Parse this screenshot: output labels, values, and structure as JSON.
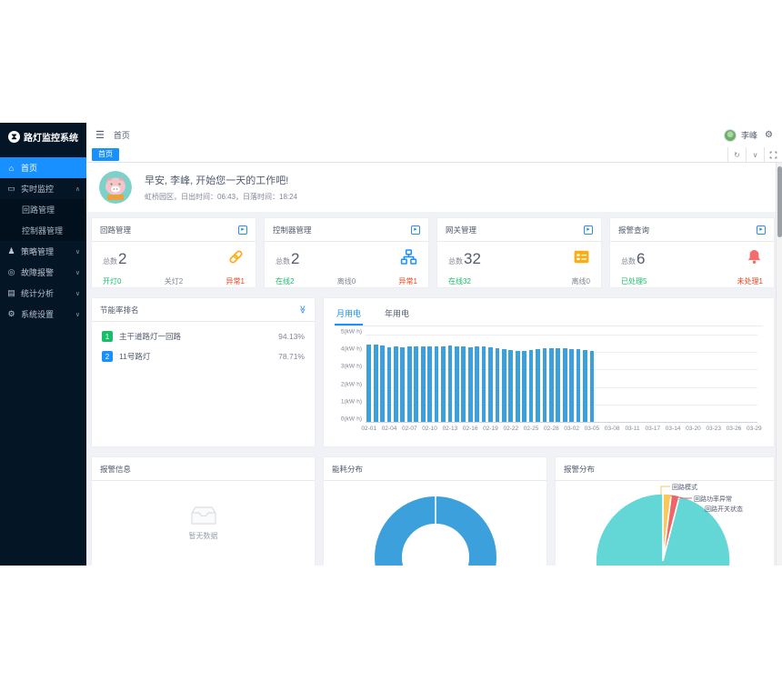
{
  "app_title": "路灯监控系统",
  "theme": {
    "accent": "#1890ff",
    "sidebar_bg": "#041526",
    "green": "#19be6b",
    "red": "#ed3f14",
    "gray": "#808695",
    "bar_blue": "#3ca0dc",
    "pie_teal": "#63d6d6",
    "orange": "#faad14",
    "bell_red": "#f56c6c"
  },
  "sidebar": {
    "items": [
      {
        "label": "首页",
        "icon": "home-icon",
        "active": true
      },
      {
        "label": "实时监控",
        "icon": "monitor-icon",
        "caret": "∧",
        "children": [
          {
            "label": "回路管理"
          },
          {
            "label": "控制器管理"
          }
        ]
      },
      {
        "label": "策略管理",
        "icon": "strategy-icon",
        "caret": "∨"
      },
      {
        "label": "故障报警",
        "icon": "fault-icon",
        "caret": "∨"
      },
      {
        "label": "统计分析",
        "icon": "stats-icon",
        "caret": "∨"
      },
      {
        "label": "系统设置",
        "icon": "settings-icon",
        "caret": "∨"
      }
    ]
  },
  "header": {
    "breadcrumb": "首页",
    "user_name": "李峰"
  },
  "tabbar": {
    "active_tab": "首页"
  },
  "greeting": {
    "title": "早安, 李峰, 开始您一天的工作吧!",
    "subtitle": "虹桥园区，日出时间：06:43，日落时间：18:24"
  },
  "stat_cards": [
    {
      "title": "回路管理",
      "total_label": "总数",
      "total": "2",
      "icon": "link-icon",
      "stats": [
        {
          "text": "开灯0",
          "tone": "green"
        },
        {
          "text": "关灯2",
          "tone": "gray"
        },
        {
          "text": "异常1",
          "tone": "red"
        }
      ]
    },
    {
      "title": "控制器管理",
      "total_label": "总数",
      "total": "2",
      "icon": "controller-icon",
      "stats": [
        {
          "text": "在线2",
          "tone": "green"
        },
        {
          "text": "离线0",
          "tone": "gray"
        },
        {
          "text": "异常1",
          "tone": "red"
        }
      ]
    },
    {
      "title": "网关管理",
      "total_label": "总数",
      "total": "32",
      "icon": "gateway-icon",
      "stats": [
        {
          "text": "在线32",
          "tone": "green"
        },
        {
          "text": "离线0",
          "tone": "gray"
        }
      ]
    },
    {
      "title": "报警查询",
      "total_label": "总数",
      "total": "6",
      "icon": "bell-icon",
      "stats": [
        {
          "text": "已处理5",
          "tone": "green"
        },
        {
          "text": "未处理1",
          "tone": "red"
        }
      ]
    }
  ],
  "ranking": {
    "title": "节能率排名",
    "items": [
      {
        "rank": "1",
        "name": "主干道路灯一回路",
        "value": "94.13%",
        "badge_color": "#19be6b"
      },
      {
        "rank": "2",
        "name": "11号路灯",
        "value": "78.71%",
        "badge_color": "#1890ff"
      }
    ]
  },
  "energy_chart": {
    "tabs": [
      "月用电",
      "年用电"
    ],
    "active_tab_index": 0
  },
  "alarm_info": {
    "title": "报警信息",
    "empty_text": "暂无数据"
  },
  "energy_dist": {
    "title": "能耗分布"
  },
  "alarm_dist": {
    "title": "报警分布"
  },
  "chart_data": [
    {
      "type": "bar",
      "title": "月用电",
      "ylabel": "kW·h",
      "ylim": [
        0,
        5
      ],
      "y_tick_labels": [
        "0(kW·h)",
        "1(kW·h)",
        "2(kW·h)",
        "3(kW·h)",
        "4(kW·h)",
        "5(kW·h)"
      ],
      "axis_slot_count": 58,
      "x_tick_labels": [
        "02-01",
        "02-04",
        "02-07",
        "02-10",
        "02-13",
        "02-16",
        "02-19",
        "02-22",
        "02-25",
        "02-28",
        "03-02",
        "03-05",
        "03-08",
        "03-11",
        "03-17",
        "03-14",
        "03-20",
        "03-23",
        "03-26",
        "03-29"
      ],
      "categories": [
        "02-01",
        "02-02",
        "02-03",
        "02-04",
        "02-05",
        "02-06",
        "02-07",
        "02-08",
        "02-09",
        "02-10",
        "02-11",
        "02-12",
        "02-13",
        "02-14",
        "02-15",
        "02-16",
        "02-17",
        "02-18",
        "02-19",
        "02-20",
        "02-21",
        "02-22",
        "02-23",
        "02-24",
        "02-25",
        "02-26",
        "02-27",
        "02-28",
        "02-29",
        "03-01",
        "03-02",
        "03-03",
        "03-04",
        "03-05"
      ],
      "values": [
        4.45,
        4.42,
        4.38,
        4.27,
        4.31,
        4.27,
        4.3,
        4.3,
        4.33,
        4.34,
        4.3,
        4.33,
        4.35,
        4.33,
        4.3,
        4.27,
        4.3,
        4.31,
        4.28,
        4.22,
        4.15,
        4.1,
        4.05,
        4.08,
        4.12,
        4.17,
        4.21,
        4.2,
        4.22,
        4.2,
        4.15,
        4.18,
        4.1,
        4.04
      ],
      "bar_color": "#3ca0dc",
      "grid": true
    },
    {
      "type": "pie",
      "title": "能耗分布",
      "donut": true,
      "slices": [
        {
          "label": "",
          "value": 100,
          "color": "#3ca0dc"
        }
      ]
    },
    {
      "type": "pie",
      "title": "报警分布",
      "values_are": "percent_estimated",
      "slices": [
        {
          "label": "回路模式",
          "value": 2,
          "color": "#fac858"
        },
        {
          "label": "回路功率异常",
          "value": 2,
          "color": "#ee6666"
        },
        {
          "label": "回路开关状态",
          "value": 96,
          "color": "#63d6d6"
        }
      ]
    }
  ]
}
